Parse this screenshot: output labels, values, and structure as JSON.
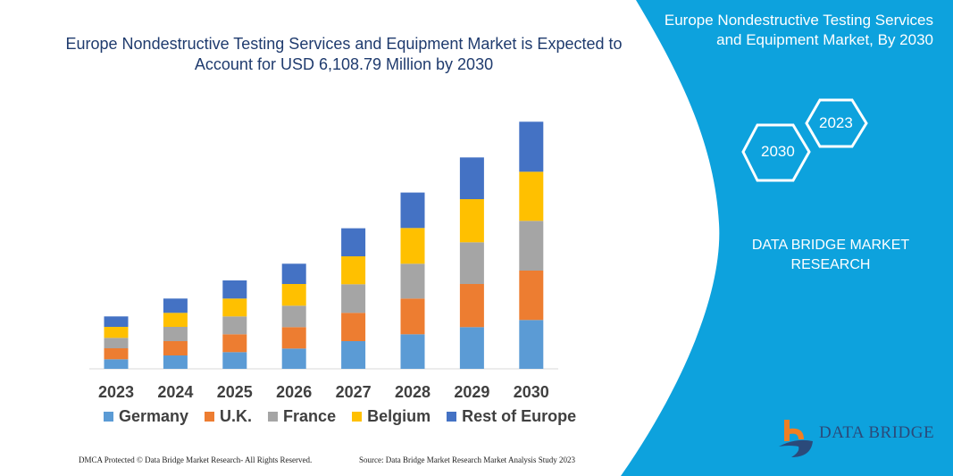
{
  "title": "Europe Nondestructive Testing Services and Equipment Market is Expected to Account for USD 6,108.79 Million by 2030",
  "side_panel": {
    "title": "Europe Nondestructive Testing Services and Equipment Market, By 2030",
    "hex_labels": [
      "2030",
      "2023"
    ],
    "brand": "DATA BRIDGE MARKET RESEARCH",
    "logo_text": "DATA BRIDGE",
    "color": "#0da2dd"
  },
  "footer": {
    "left": "DMCA Protected © Data Bridge Market Research- All Rights Reserved.",
    "right": "Source: Data Bridge Market Research  Market Analysis Study 2023"
  },
  "chart_data": {
    "type": "bar",
    "stacked": true,
    "categories": [
      "2023",
      "2024",
      "2025",
      "2026",
      "2027",
      "2028",
      "2029",
      "2030"
    ],
    "series": [
      {
        "name": "Germany",
        "color": "#5b9bd5",
        "values": [
          10.7,
          15,
          18.7,
          22.7,
          31,
          38.7,
          46.7,
          54.7
        ]
      },
      {
        "name": "U.K.",
        "color": "#ed7d31",
        "values": [
          12.3,
          16,
          20,
          24,
          31.7,
          40,
          48.3,
          55.3
        ]
      },
      {
        "name": "France",
        "color": "#a5a5a5",
        "values": [
          11.7,
          16,
          20,
          24,
          32,
          39,
          46.7,
          55.7
        ]
      },
      {
        "name": "Belgium",
        "color": "#ffc000",
        "values": [
          12.3,
          15.7,
          20,
          24.3,
          31.3,
          40,
          48.3,
          55
        ]
      },
      {
        "name": "Rest of Europe",
        "color": "#4472c4",
        "values": [
          11.7,
          16,
          20.3,
          22.7,
          31.4,
          39.7,
          46.7,
          56
        ]
      }
    ],
    "y_axis_shown": false,
    "grid": false,
    "legend_position": "bottom"
  }
}
